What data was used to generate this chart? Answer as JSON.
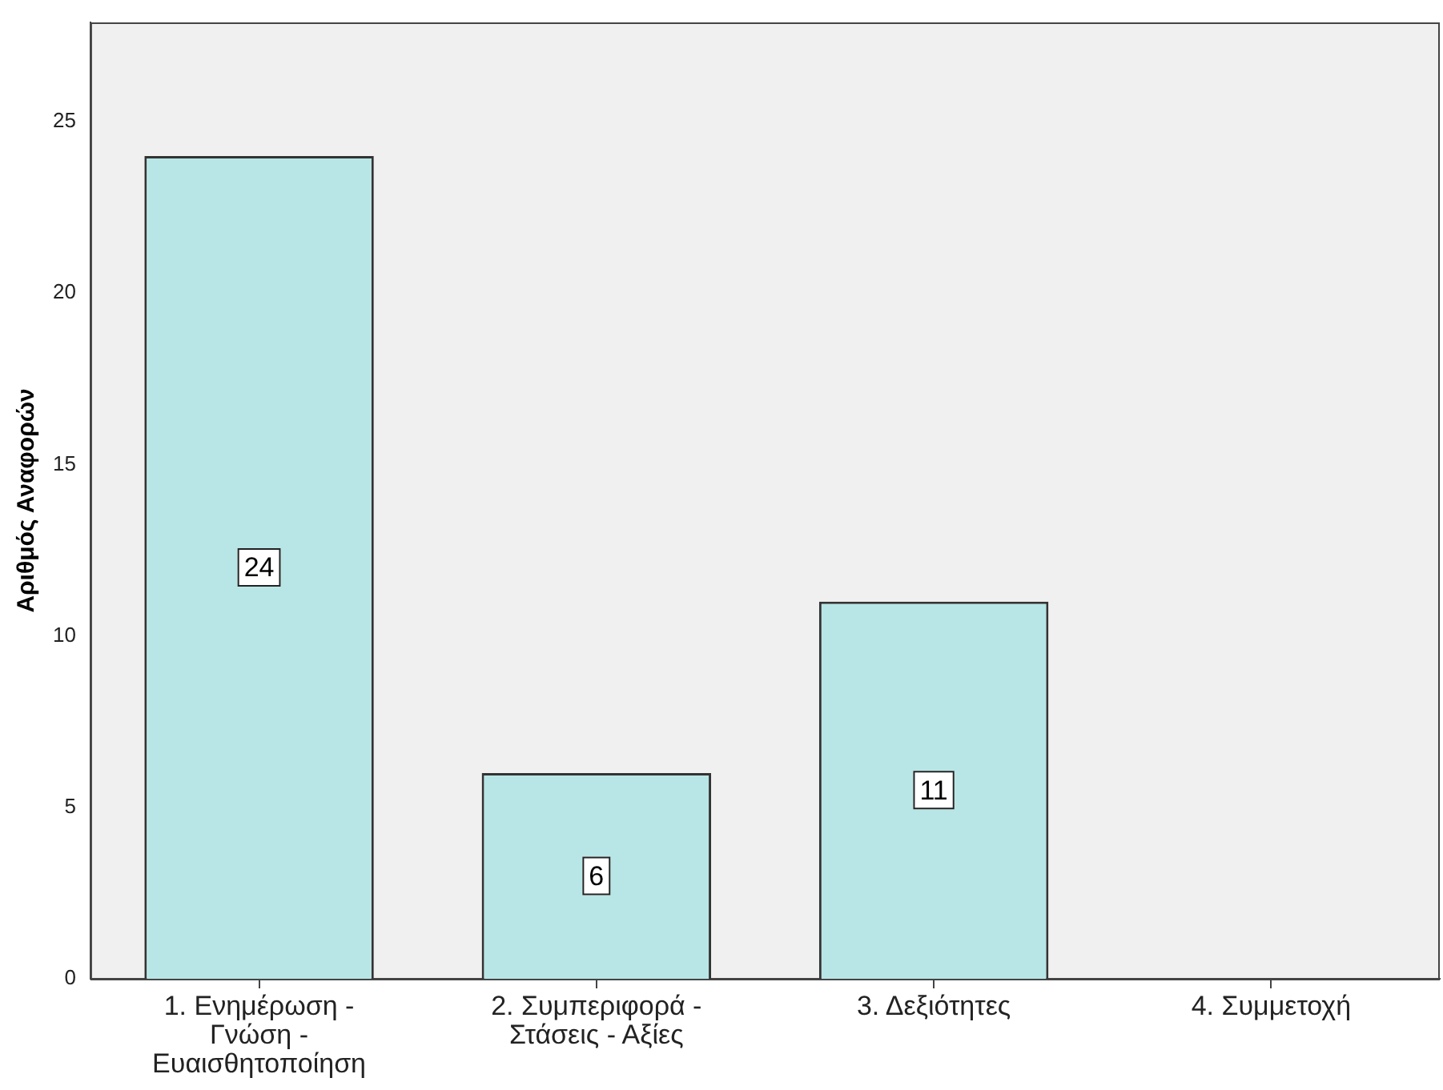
{
  "chart_data": {
    "type": "bar",
    "ylabel": "Αριθμός Αναφορών",
    "categories": [
      "1. Ενημέρωση - Γνώση - Ευαισθητοποίηση",
      "2. Συμπεριφορά - Στάσεις - Αξίες",
      "3. Δεξιότητες",
      "4. Συμμετοχή"
    ],
    "values": [
      24,
      6,
      11,
      0
    ],
    "value_labels": [
      "24",
      "6",
      "11",
      null
    ],
    "color": "#b8e6e6",
    "ylim": [
      0,
      27.9
    ],
    "yticks": [
      0,
      5,
      10,
      15,
      20,
      25
    ],
    "grid": false,
    "legend": false
  }
}
